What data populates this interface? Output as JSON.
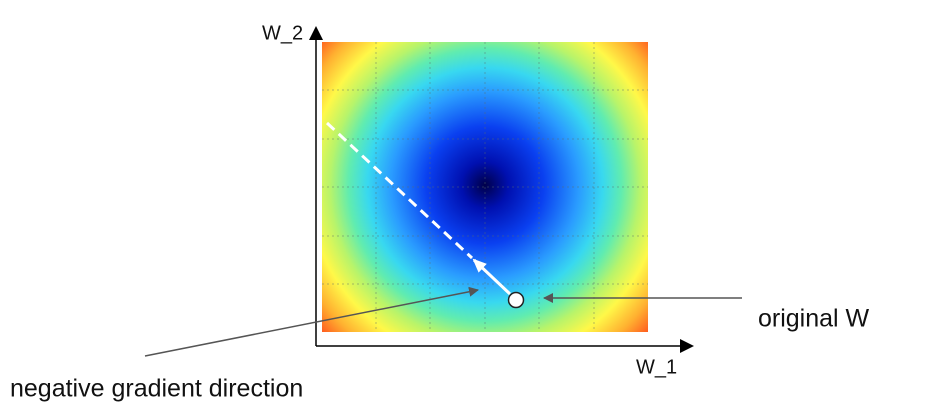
{
  "axes": {
    "x_label": "W_1",
    "y_label": "W_2"
  },
  "annotations": {
    "point": "original W",
    "arrow": "negative gradient direction"
  }
}
